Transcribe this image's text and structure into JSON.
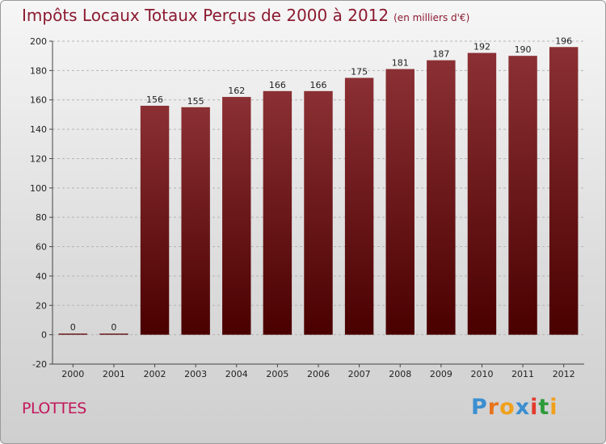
{
  "title": "Impôts Locaux Totaux Perçus de 2000 à 2012",
  "unit_note": "(en milliers d'€)",
  "commune": "PLOTTES",
  "logo": {
    "text": "Proxiti",
    "letter_colors": [
      "#3a8fd1",
      "#e8731c",
      "#f0a01a",
      "#3a8fd1",
      "#e23b2d",
      "#2e9b3a",
      "#f0a01a"
    ]
  },
  "colors": {
    "bar_top": "#8b3034",
    "bar_bottom": "#4a0000",
    "grid": "#b5b5b5"
  },
  "chart_data": {
    "type": "bar",
    "categories": [
      "2000",
      "2001",
      "2002",
      "2003",
      "2004",
      "2005",
      "2006",
      "2007",
      "2008",
      "2009",
      "2010",
      "2011",
      "2012"
    ],
    "values": [
      0,
      0,
      156,
      155,
      162,
      166,
      166,
      175,
      181,
      187,
      192,
      190,
      196
    ],
    "ylim": [
      -20,
      200
    ],
    "yticks": [
      -20,
      0,
      20,
      40,
      60,
      80,
      100,
      120,
      140,
      160,
      180,
      200
    ],
    "grid": true
  }
}
